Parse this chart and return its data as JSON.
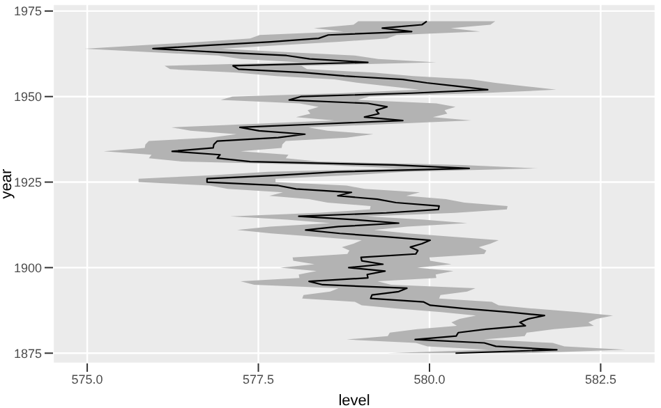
{
  "chart_data": {
    "type": "line",
    "orientation": "horizontal",
    "xlabel": "level",
    "ylabel": "year",
    "grid": true,
    "marker": "none",
    "line_style": "solid",
    "xlim": [
      574.5,
      583.3
    ],
    "xticks": [
      {
        "value": 575,
        "label": "575.0"
      },
      {
        "value": 577.5,
        "label": "577.5"
      },
      {
        "value": 580,
        "label": "580.0"
      },
      {
        "value": 582.5,
        "label": "582.5"
      }
    ],
    "ylim": [
      1872,
      1977
    ],
    "yticks": [
      1875,
      1900,
      1925,
      1950,
      1975
    ],
    "x": [
      1875,
      1876,
      1877,
      1878,
      1879,
      1880,
      1881,
      1882,
      1883,
      1884,
      1885,
      1886,
      1887,
      1888,
      1889,
      1890,
      1891,
      1892,
      1893,
      1894,
      1895,
      1896,
      1897,
      1898,
      1899,
      1900,
      1901,
      1902,
      1903,
      1904,
      1905,
      1906,
      1907,
      1908,
      1909,
      1910,
      1911,
      1912,
      1913,
      1914,
      1915,
      1916,
      1917,
      1918,
      1919,
      1920,
      1921,
      1922,
      1923,
      1924,
      1925,
      1926,
      1927,
      1928,
      1929,
      1930,
      1931,
      1932,
      1933,
      1934,
      1935,
      1936,
      1937,
      1938,
      1939,
      1940,
      1941,
      1942,
      1943,
      1944,
      1945,
      1946,
      1947,
      1948,
      1949,
      1950,
      1951,
      1952,
      1953,
      1954,
      1955,
      1956,
      1957,
      1958,
      1959,
      1960,
      1961,
      1962,
      1963,
      1964,
      1965,
      1966,
      1967,
      1968,
      1969,
      1970,
      1971,
      1972
    ],
    "series": [
      {
        "color": "#000000",
        "values": [
          580.38,
          581.86,
          580.97,
          580.8,
          579.79,
          580.39,
          580.42,
          580.82,
          581.4,
          581.32,
          581.44,
          581.68,
          581.17,
          580.53,
          580.01,
          579.91,
          579.14,
          579.16,
          579.55,
          579.67,
          578.44,
          578.24,
          579.1,
          579.09,
          579.35,
          578.82,
          579.32,
          579.01,
          579,
          579.8,
          579.83,
          579.72,
          579.89,
          580.01,
          579.37,
          578.69,
          578.19,
          578.67,
          579.55,
          578.92,
          578.09,
          579.37,
          580.13,
          580.14,
          579.51,
          579.24,
          578.66,
          578.86,
          578.05,
          577.79,
          576.75,
          576.75,
          577.82,
          578.64,
          580.58,
          579.48,
          577.38,
          576.9,
          576.94,
          576.24,
          576.84,
          576.85,
          576.9,
          577.79,
          578.18,
          577.51,
          577.23,
          578.42,
          579.61,
          579.05,
          579.26,
          579.22,
          579.38,
          579.1,
          577.95,
          578.12,
          579.75,
          580.85,
          580.41,
          579.96,
          579.61,
          578.76,
          578.18,
          577.21,
          577.13,
          579.1,
          578.25,
          577.91,
          576.89,
          575.96,
          576.8,
          577.68,
          578.38,
          578.52,
          579.74,
          579.31,
          579.89,
          579.96
        ],
        "lower": [
          579.38,
          580.86,
          579.97,
          579.8,
          578.79,
          579.39,
          579.42,
          579.82,
          580.4,
          580.32,
          580.44,
          580.68,
          580.17,
          579.53,
          579.01,
          578.91,
          578.14,
          578.16,
          578.55,
          578.67,
          577.44,
          577.24,
          578.1,
          578.09,
          578.35,
          577.82,
          578.32,
          578.01,
          578,
          578.8,
          578.83,
          578.72,
          578.89,
          579.01,
          578.37,
          577.69,
          577.19,
          577.67,
          578.55,
          577.92,
          577.09,
          578.37,
          579.13,
          579.14,
          578.51,
          578.24,
          577.66,
          577.86,
          577.05,
          576.79,
          575.75,
          575.75,
          576.82,
          577.64,
          579.58,
          578.48,
          576.38,
          575.9,
          575.94,
          575.24,
          575.84,
          575.85,
          575.9,
          576.79,
          577.18,
          576.51,
          576.23,
          577.42,
          578.61,
          578.05,
          578.26,
          578.22,
          578.38,
          578.1,
          576.95,
          577.12,
          578.75,
          579.85,
          579.41,
          578.96,
          578.61,
          577.76,
          577.18,
          576.21,
          576.13,
          578.1,
          577.25,
          576.91,
          575.89,
          574.96,
          575.8,
          576.68,
          577.38,
          577.52,
          578.74,
          578.31,
          578.89,
          578.96
        ],
        "upper": [
          581.38,
          582.86,
          581.97,
          581.8,
          580.79,
          581.39,
          581.42,
          581.82,
          582.4,
          582.32,
          582.44,
          582.68,
          582.17,
          581.53,
          581.01,
          580.91,
          580.14,
          580.16,
          580.55,
          580.67,
          579.44,
          579.24,
          580.1,
          580.09,
          580.35,
          579.82,
          580.32,
          580.01,
          580,
          580.8,
          580.83,
          580.72,
          580.89,
          581.01,
          580.37,
          579.69,
          579.19,
          579.67,
          580.55,
          579.92,
          579.09,
          580.37,
          581.13,
          581.14,
          580.51,
          580.24,
          579.66,
          579.86,
          579.05,
          578.79,
          577.75,
          577.75,
          578.82,
          579.64,
          581.58,
          580.48,
          578.38,
          577.9,
          577.94,
          577.24,
          577.84,
          577.85,
          577.9,
          578.79,
          579.18,
          578.51,
          578.23,
          579.42,
          580.61,
          580.05,
          580.26,
          580.22,
          580.38,
          580.1,
          578.95,
          579.12,
          580.75,
          581.85,
          581.41,
          580.96,
          580.61,
          579.76,
          579.18,
          578.21,
          578.13,
          580.1,
          579.25,
          578.91,
          577.89,
          576.96,
          577.8,
          578.68,
          579.38,
          579.52,
          580.74,
          580.31,
          580.89,
          580.96
        ]
      }
    ]
  }
}
